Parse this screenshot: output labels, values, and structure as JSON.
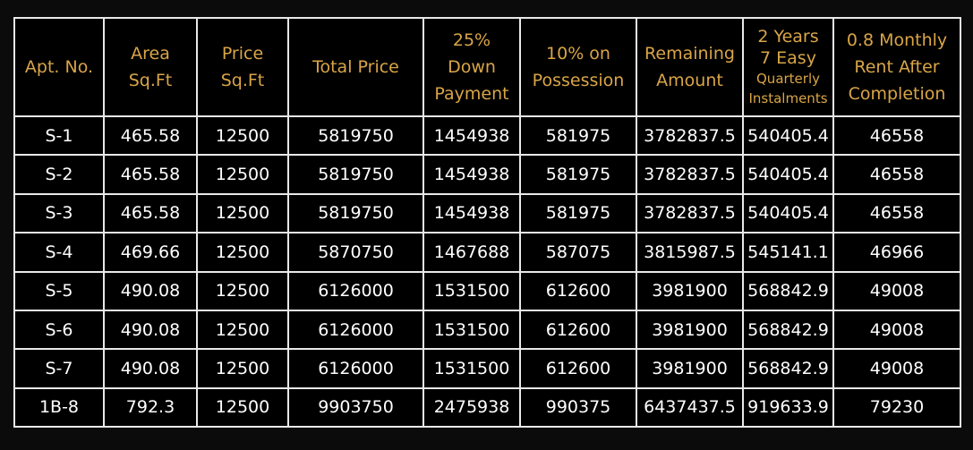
{
  "table": {
    "headers": [
      {
        "lines": [
          "Apt.  No."
        ]
      },
      {
        "lines": [
          "Area",
          "Sq.Ft"
        ]
      },
      {
        "lines": [
          "Price",
          "Sq.Ft"
        ]
      },
      {
        "lines": [
          "Total Price"
        ]
      },
      {
        "lines": [
          "25%",
          "Down",
          "Payment"
        ]
      },
      {
        "lines": [
          "10% on",
          "Possession"
        ]
      },
      {
        "lines": [
          "Remaining",
          "Amount"
        ]
      },
      {
        "lines": [
          "2 Years",
          "7 Easy",
          "Quarterly",
          "Instalments"
        ]
      },
      {
        "lines": [
          "0.8 Monthly",
          "Rent After",
          "Completion"
        ]
      }
    ],
    "rows": [
      [
        "S-1",
        "465.58",
        "12500",
        "5819750",
        "1454938",
        "581975",
        "3782837.5",
        "540405.4",
        "46558"
      ],
      [
        "S-2",
        "465.58",
        "12500",
        "5819750",
        "1454938",
        "581975",
        "3782837.5",
        "540405.4",
        "46558"
      ],
      [
        "S-3",
        "465.58",
        "12500",
        "5819750",
        "1454938",
        "581975",
        "3782837.5",
        "540405.4",
        "46558"
      ],
      [
        "S-4",
        "469.66",
        "12500",
        "5870750",
        "1467688",
        "587075",
        "3815987.5",
        "545141.1",
        "46966"
      ],
      [
        "S-5",
        "490.08",
        "12500",
        "6126000",
        "1531500",
        "612600",
        "3981900",
        "568842.9",
        "49008"
      ],
      [
        "S-6",
        "490.08",
        "12500",
        "6126000",
        "1531500",
        "612600",
        "3981900",
        "568842.9",
        "49008"
      ],
      [
        "S-7",
        "490.08",
        "12500",
        "6126000",
        "1531500",
        "612600",
        "3981900",
        "568842.9",
        "49008"
      ],
      [
        "1B-8",
        "792.3",
        "12500",
        "9903750",
        "2475938",
        "990375",
        "6437437.5",
        "919633.9",
        "79230"
      ]
    ]
  },
  "colors": {
    "background": "#000000",
    "header_text": "#d9a547",
    "cell_text": "#ffffff",
    "grid_lines": "#e9e9e9"
  }
}
